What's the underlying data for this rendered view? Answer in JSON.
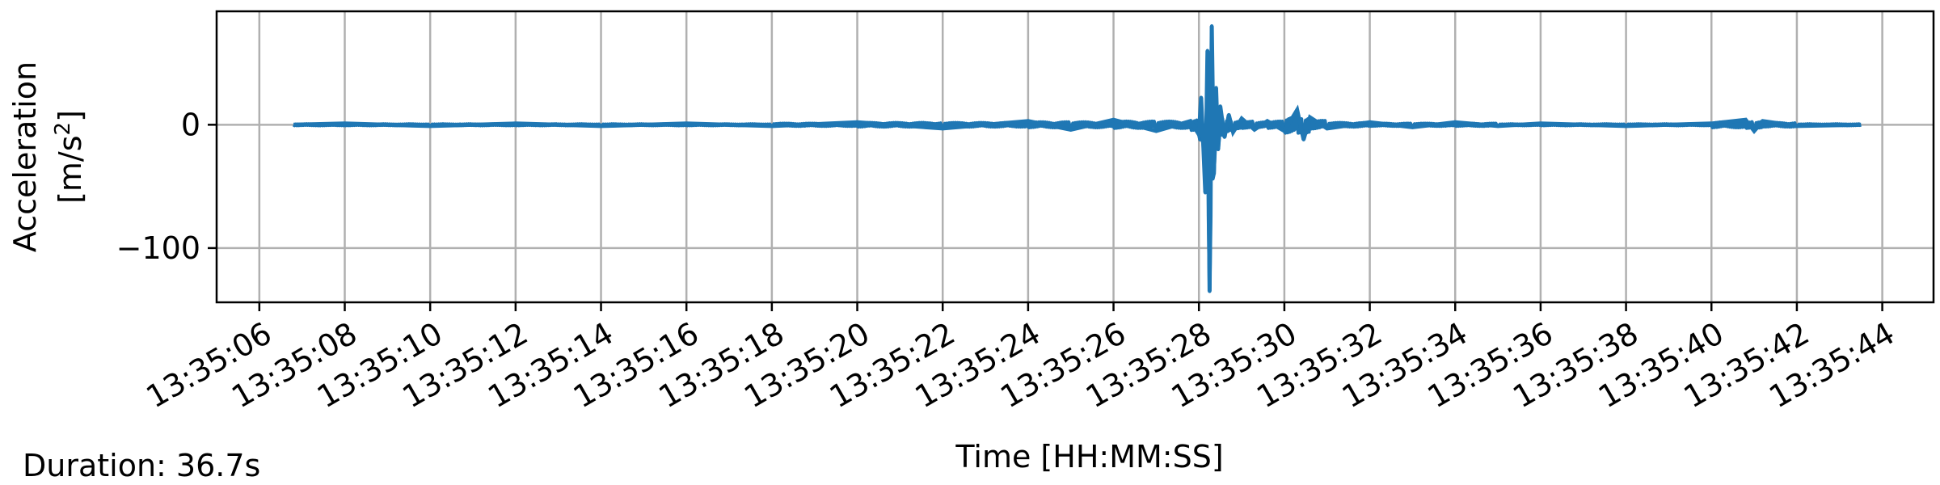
{
  "chart_data": {
    "type": "line",
    "xlabel": "Time [HH:MM:SS]",
    "ylabel_lines": [
      "Acceleration",
      "[m/s",
      "2",
      "]"
    ],
    "x_ticks": [
      "13:35:06",
      "13:35:08",
      "13:35:10",
      "13:35:12",
      "13:35:14",
      "13:35:16",
      "13:35:18",
      "13:35:20",
      "13:35:22",
      "13:35:24",
      "13:35:26",
      "13:35:28",
      "13:35:30",
      "13:35:32",
      "13:35:34",
      "13:35:36",
      "13:35:38",
      "13:35:40",
      "13:35:42",
      "13:35:44"
    ],
    "y_ticks": [
      "0",
      "−100"
    ],
    "xlim": [
      "13:35:05",
      "13:35:45.2"
    ],
    "ylim": [
      -144,
      92
    ],
    "grid": true,
    "line_color": "#1f77b4",
    "series": [
      {
        "x": [
          "13:35:06.8",
          "13:35:08",
          "13:35:10",
          "13:35:12",
          "13:35:14",
          "13:35:16",
          "13:35:18",
          "13:35:20",
          "13:35:22",
          "13:35:24",
          "13:35:25",
          "13:35:26",
          "13:35:27",
          "13:35:27.8",
          "13:35:28",
          "13:35:28.05",
          "13:35:28.1",
          "13:35:28.15",
          "13:35:28.2",
          "13:35:28.25",
          "13:35:28.3",
          "13:35:28.35",
          "13:35:28.4",
          "13:35:28.45",
          "13:35:28.5",
          "13:35:28.6",
          "13:35:28.7",
          "13:35:28.8",
          "13:35:29",
          "13:35:29.3",
          "13:35:29.6",
          "13:35:30",
          "13:35:30.3",
          "13:35:30.45",
          "13:35:30.6",
          "13:35:31",
          "13:35:32",
          "13:35:33",
          "13:35:34",
          "13:35:35",
          "13:35:36",
          "13:35:38",
          "13:35:40",
          "13:35:40.8",
          "13:35:41",
          "13:35:41.2",
          "13:35:42",
          "13:35:43.5"
        ],
        "y": [
          0,
          1,
          -1,
          1,
          -1,
          1,
          -1,
          2,
          -3,
          3,
          -4,
          4,
          -5,
          3,
          -8,
          22,
          -15,
          -55,
          60,
          -135,
          80,
          -40,
          30,
          -20,
          15,
          -10,
          8,
          -6,
          5,
          -4,
          3,
          -5,
          12,
          -12,
          6,
          -3,
          2,
          -2,
          2,
          -1,
          1,
          -1,
          1,
          4,
          -5,
          3,
          -1,
          0
        ]
      }
    ]
  },
  "footer": {
    "duration": "Duration: 36.7s"
  }
}
